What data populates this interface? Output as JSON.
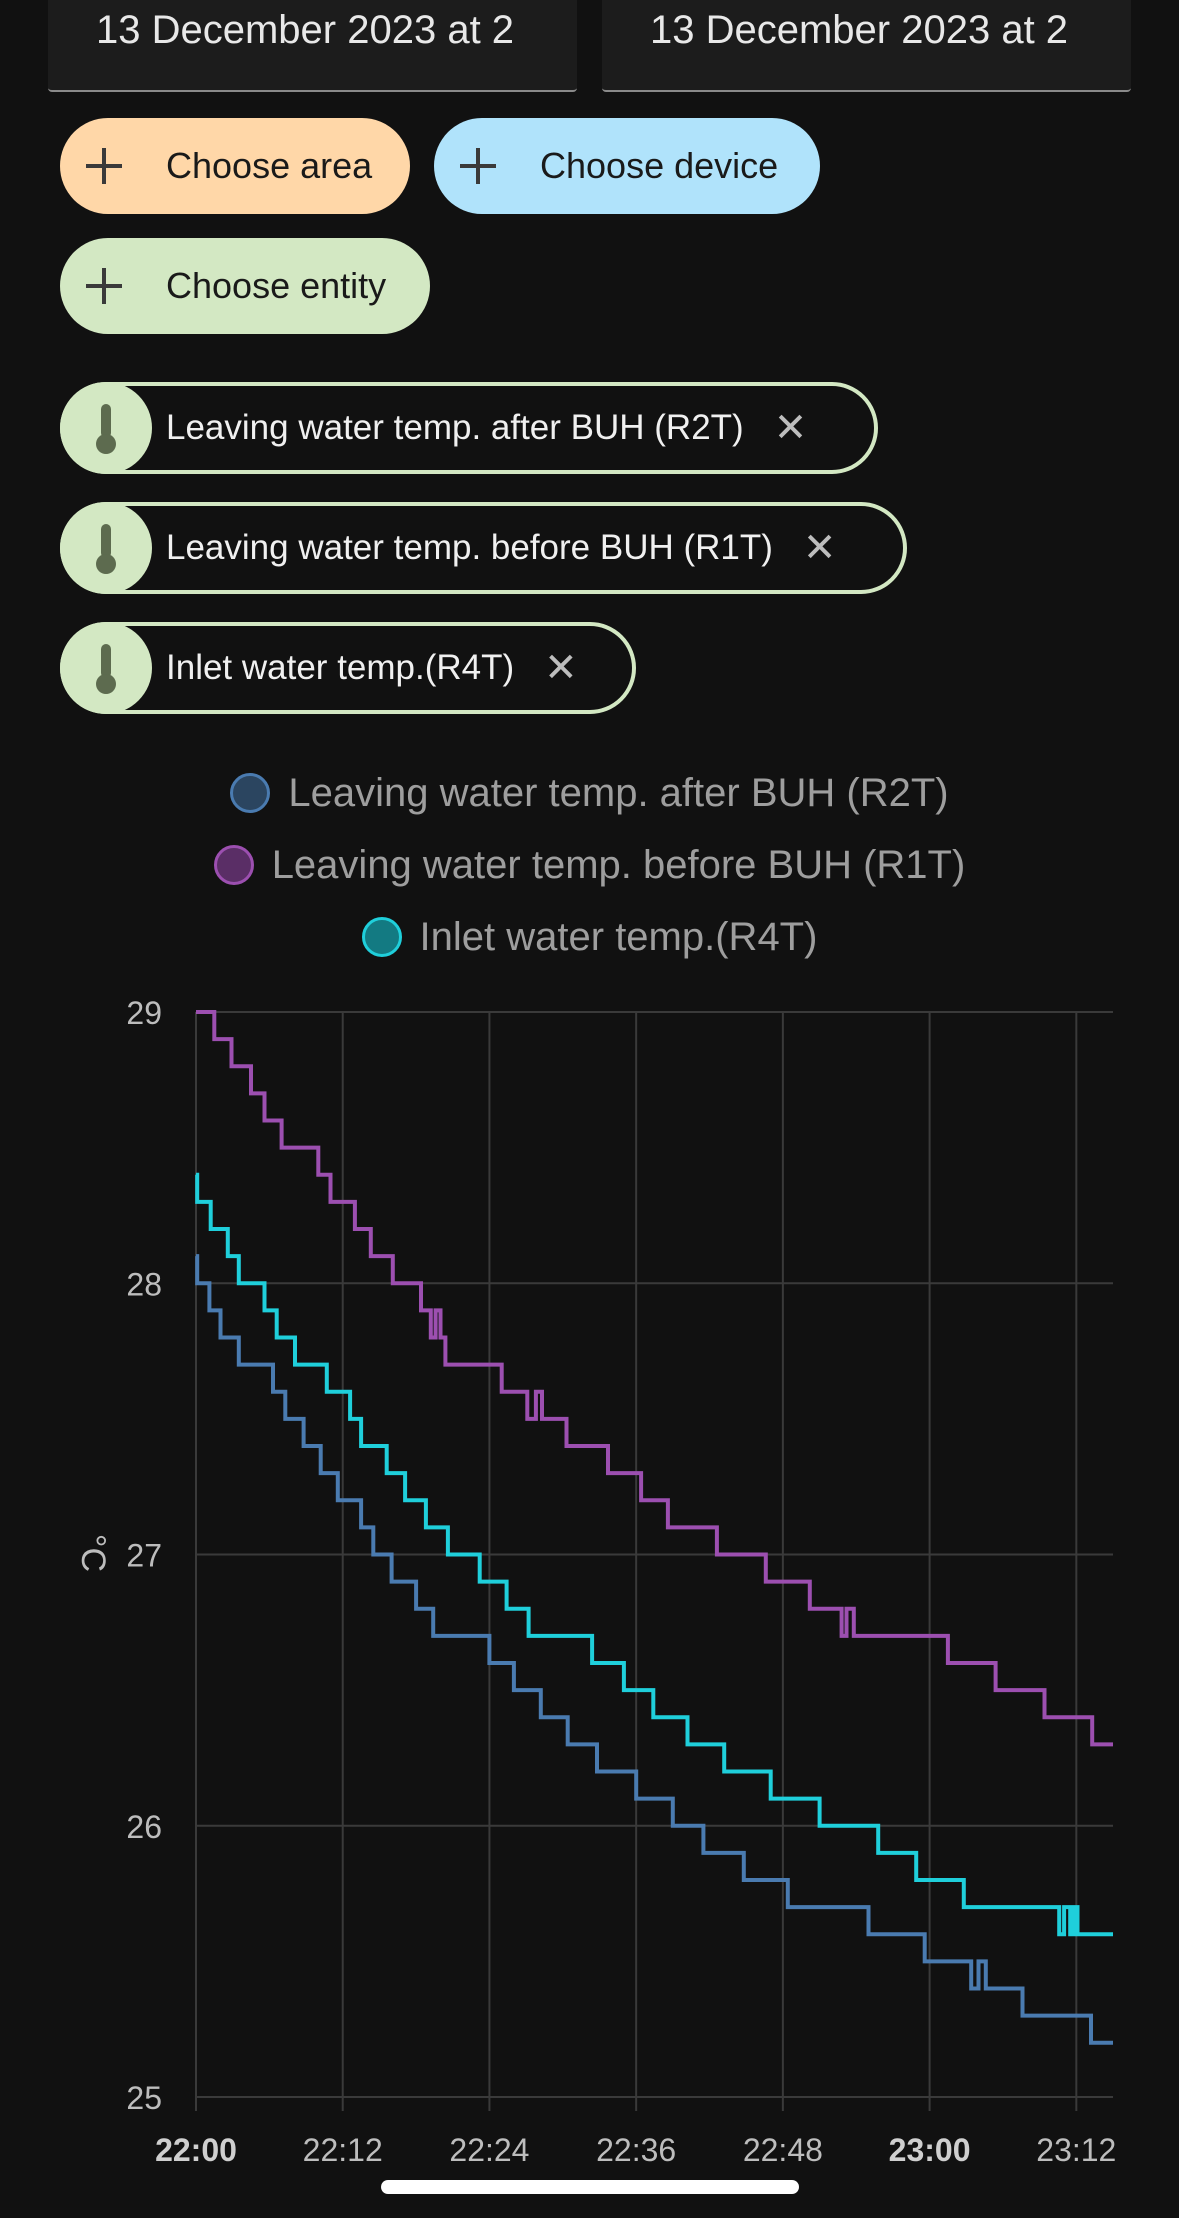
{
  "date_range": {
    "start": "13 December 2023 at 2",
    "end": "13 December 2023 at 2"
  },
  "target_picker": {
    "area_label": "Choose area",
    "device_label": "Choose device",
    "entity_label": "Choose entity",
    "area_color": "#ffd7a8",
    "device_color": "#b0e3fb",
    "entity_color": "#d3e8c3"
  },
  "selected_entities": [
    {
      "label": "Leaving water temp. after BUH (R2T)",
      "icon": "thermometer-icon"
    },
    {
      "label": "Leaving water temp. before BUH (R1T)",
      "icon": "thermometer-icon"
    },
    {
      "label": "Inlet water temp.(R4T)",
      "icon": "thermometer-icon"
    }
  ],
  "chart_data": {
    "type": "line",
    "step": true,
    "ylabel": "°C",
    "ylim": [
      25,
      29
    ],
    "y_ticks": [
      "29",
      "28",
      "27",
      "26",
      "25"
    ],
    "x_ticks": [
      "22:00",
      "22:12",
      "22:24",
      "22:36",
      "22:48",
      "23:00",
      "23:12"
    ],
    "x_ticks_bold": [
      "22:00",
      "23:00"
    ],
    "x_range_minutes": [
      0,
      75
    ],
    "grid": true,
    "legend_position": "top",
    "series": [
      {
        "name": "Leaving water temp. after BUH (R2T)",
        "color": "#4a7bb0",
        "points": [
          [
            0,
            28.1
          ],
          [
            0.1,
            28.0
          ],
          [
            1.1,
            27.9
          ],
          [
            2.0,
            27.8
          ],
          [
            3.5,
            27.7
          ],
          [
            6.3,
            27.6
          ],
          [
            7.3,
            27.5
          ],
          [
            8.8,
            27.4
          ],
          [
            10.2,
            27.3
          ],
          [
            11.6,
            27.2
          ],
          [
            13.5,
            27.1
          ],
          [
            14.5,
            27.0
          ],
          [
            16.0,
            26.9
          ],
          [
            18.0,
            26.8
          ],
          [
            19.4,
            26.7
          ],
          [
            24.0,
            26.6
          ],
          [
            26.0,
            26.5
          ],
          [
            28.2,
            26.4
          ],
          [
            30.4,
            26.3
          ],
          [
            32.8,
            26.2
          ],
          [
            36.0,
            26.1
          ],
          [
            39.0,
            26.0
          ],
          [
            41.5,
            25.9
          ],
          [
            44.8,
            25.8
          ],
          [
            48.4,
            25.7
          ],
          [
            55.0,
            25.6
          ],
          [
            59.6,
            25.5
          ],
          [
            63.4,
            25.4
          ],
          [
            64.0,
            25.5
          ],
          [
            64.6,
            25.4
          ],
          [
            67.6,
            25.3
          ],
          [
            73.2,
            25.2
          ],
          [
            75.0,
            25.2
          ]
        ]
      },
      {
        "name": "Leaving water temp. before BUH (R1T)",
        "color": "#9c4fb0",
        "points": [
          [
            0,
            29.0
          ],
          [
            1.5,
            28.9
          ],
          [
            2.9,
            28.8
          ],
          [
            4.5,
            28.7
          ],
          [
            5.6,
            28.6
          ],
          [
            7.0,
            28.5
          ],
          [
            10.0,
            28.4
          ],
          [
            11.0,
            28.3
          ],
          [
            13.0,
            28.2
          ],
          [
            14.3,
            28.1
          ],
          [
            16.1,
            28.0
          ],
          [
            18.4,
            27.9
          ],
          [
            19.2,
            27.8
          ],
          [
            19.6,
            27.9
          ],
          [
            20.0,
            27.8
          ],
          [
            20.4,
            27.7
          ],
          [
            25.0,
            27.6
          ],
          [
            27.1,
            27.5
          ],
          [
            27.8,
            27.6
          ],
          [
            28.3,
            27.5
          ],
          [
            30.3,
            27.4
          ],
          [
            33.7,
            27.3
          ],
          [
            36.4,
            27.2
          ],
          [
            38.6,
            27.1
          ],
          [
            42.6,
            27.0
          ],
          [
            46.6,
            26.9
          ],
          [
            50.2,
            26.8
          ],
          [
            52.8,
            26.7
          ],
          [
            53.2,
            26.8
          ],
          [
            53.8,
            26.7
          ],
          [
            61.5,
            26.6
          ],
          [
            65.4,
            26.5
          ],
          [
            69.4,
            26.4
          ],
          [
            73.3,
            26.3
          ],
          [
            75.0,
            26.3
          ]
        ]
      },
      {
        "name": "Inlet water temp.(R4T)",
        "color": "#1fcfdb",
        "points": [
          [
            0,
            28.4
          ],
          [
            0.1,
            28.3
          ],
          [
            1.2,
            28.2
          ],
          [
            2.6,
            28.1
          ],
          [
            3.5,
            28.0
          ],
          [
            5.6,
            27.9
          ],
          [
            6.6,
            27.8
          ],
          [
            8.1,
            27.7
          ],
          [
            10.7,
            27.6
          ],
          [
            12.6,
            27.5
          ],
          [
            13.5,
            27.4
          ],
          [
            15.6,
            27.3
          ],
          [
            17.1,
            27.2
          ],
          [
            18.8,
            27.1
          ],
          [
            20.6,
            27.0
          ],
          [
            23.2,
            26.9
          ],
          [
            25.4,
            26.8
          ],
          [
            27.2,
            26.7
          ],
          [
            32.4,
            26.6
          ],
          [
            35.0,
            26.5
          ],
          [
            37.4,
            26.4
          ],
          [
            40.2,
            26.3
          ],
          [
            43.2,
            26.2
          ],
          [
            47.0,
            26.1
          ],
          [
            51.0,
            26.0
          ],
          [
            55.8,
            25.9
          ],
          [
            58.9,
            25.8
          ],
          [
            62.8,
            25.7
          ],
          [
            70.6,
            25.6
          ],
          [
            71.0,
            25.7
          ],
          [
            71.5,
            25.6
          ],
          [
            71.8,
            25.7
          ],
          [
            72.1,
            25.6
          ],
          [
            75.0,
            25.6
          ]
        ]
      }
    ]
  }
}
